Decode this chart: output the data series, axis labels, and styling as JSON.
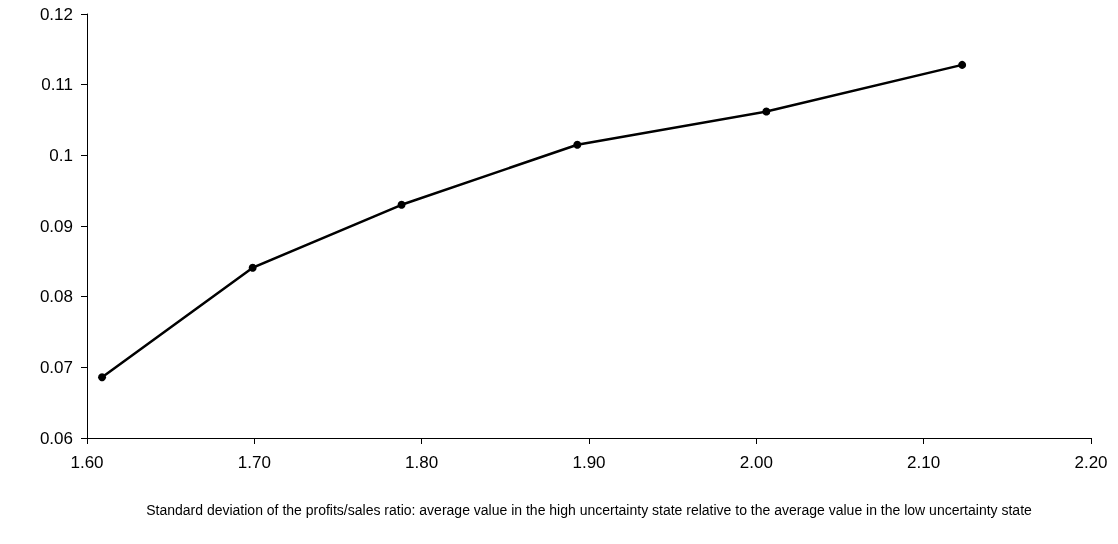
{
  "chart_data": {
    "type": "line",
    "xlabel": "Standard deviation of the profits/sales ratio: average value in the high uncertainty state relative to the average value in the low uncertainty state",
    "x": [
      1.609,
      1.699,
      1.788,
      1.893,
      2.006,
      2.123
    ],
    "series": [
      {
        "color": "#000000",
        "values": [
          0.0686,
          0.0841,
          0.093,
          0.1015,
          0.1062,
          0.1128
        ]
      }
    ],
    "xlim": [
      1.6,
      2.2
    ],
    "xticks": [
      {
        "value": 1.6,
        "label": "1.60"
      },
      {
        "value": 1.7,
        "label": "1.70"
      },
      {
        "value": 1.8,
        "label": "1.80"
      },
      {
        "value": 1.9,
        "label": "1.90"
      },
      {
        "value": 2.0,
        "label": "2.00"
      },
      {
        "value": 2.1,
        "label": "2.10"
      },
      {
        "value": 2.2,
        "label": "2.20"
      }
    ],
    "ylim": [
      0.06,
      0.12
    ],
    "yticks": [
      0.06,
      0.07,
      0.08,
      0.09,
      0.1,
      0.11,
      0.12
    ],
    "marker": "circle",
    "line_style": "solid"
  }
}
